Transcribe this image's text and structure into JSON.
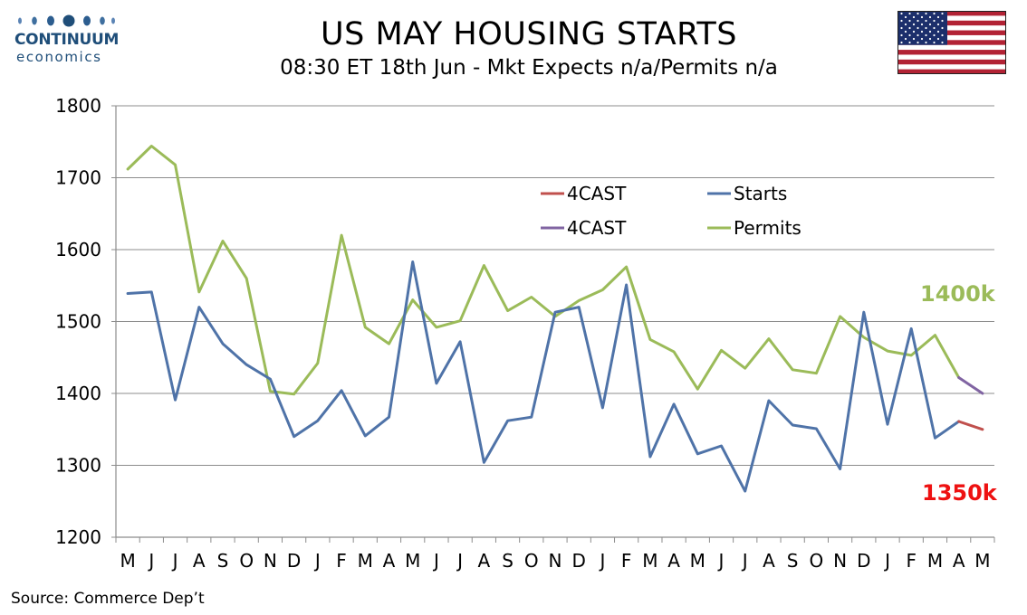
{
  "branding": {
    "logo_name": "CONTINUUM",
    "logo_sub": "economics"
  },
  "header": {
    "title": "US MAY HOUSING STARTS",
    "subtitle": "08:30 ET 18th Jun - Mkt Expects n/a/Permits n/a"
  },
  "footer": {
    "source": "Source: Commerce Dep’t"
  },
  "flag_icon": "us-flag-icon",
  "colors": {
    "starts": "#4f73a8",
    "permits": "#9bbb59",
    "forecast_starts": "#c0504d",
    "forecast_permits": "#8064a2",
    "label_permits": "#9bbb59",
    "label_starts": "#ee1111",
    "logo": "#1f4e79"
  },
  "chart_data": {
    "type": "line",
    "xlabel": "",
    "ylabel": "",
    "ylim": [
      1200,
      1800
    ],
    "yticks": [
      1200,
      1300,
      1400,
      1500,
      1600,
      1700,
      1800
    ],
    "grid": true,
    "legend_position": "upper-center",
    "categories": [
      "M",
      "J",
      "J",
      "A",
      "S",
      "O",
      "N",
      "D",
      "J",
      "F",
      "M",
      "A",
      "M",
      "J",
      "J",
      "A",
      "S",
      "O",
      "N",
      "D",
      "J",
      "F",
      "M",
      "A",
      "M",
      "J",
      "J",
      "A",
      "S",
      "O",
      "N",
      "D",
      "J",
      "F",
      "M",
      "A",
      "M"
    ],
    "series": [
      {
        "name": "Starts",
        "color_key": "starts",
        "values": [
          1539,
          1541,
          1391,
          1520,
          1469,
          1440,
          1420,
          1340,
          1362,
          1404,
          1341,
          1367,
          1583,
          1414,
          1472,
          1304,
          1362,
          1367,
          1513,
          1520,
          1380,
          1551,
          1312,
          1385,
          1316,
          1327,
          1264,
          1390,
          1356,
          1351,
          1295,
          1513,
          1357,
          1490,
          1338,
          1361,
          null
        ]
      },
      {
        "name": "Permits",
        "color_key": "permits",
        "values": [
          1712,
          1744,
          1718,
          1541,
          1612,
          1560,
          1403,
          1399,
          1442,
          1620,
          1492,
          1469,
          1530,
          1492,
          1501,
          1578,
          1515,
          1534,
          1507,
          1529,
          1544,
          1576,
          1475,
          1458,
          1406,
          1460,
          1435,
          1476,
          1433,
          1428,
          1507,
          1478,
          1459,
          1453,
          1481,
          1422,
          null
        ]
      },
      {
        "name": "4CAST",
        "color_key": "forecast_starts",
        "values": [
          null,
          null,
          null,
          null,
          null,
          null,
          null,
          null,
          null,
          null,
          null,
          null,
          null,
          null,
          null,
          null,
          null,
          null,
          null,
          null,
          null,
          null,
          null,
          null,
          null,
          null,
          null,
          null,
          null,
          null,
          null,
          null,
          null,
          null,
          null,
          1361,
          1350
        ]
      },
      {
        "name": "4CAST",
        "color_key": "forecast_permits",
        "values": [
          null,
          null,
          null,
          null,
          null,
          null,
          null,
          null,
          null,
          null,
          null,
          null,
          null,
          null,
          null,
          null,
          null,
          null,
          null,
          null,
          null,
          null,
          null,
          null,
          null,
          null,
          null,
          null,
          null,
          null,
          null,
          null,
          null,
          null,
          null,
          1422,
          1400
        ]
      }
    ],
    "annotations": [
      {
        "text": "1400k",
        "color_key": "label_permits"
      },
      {
        "text": "1350k",
        "color_key": "label_starts"
      }
    ]
  }
}
